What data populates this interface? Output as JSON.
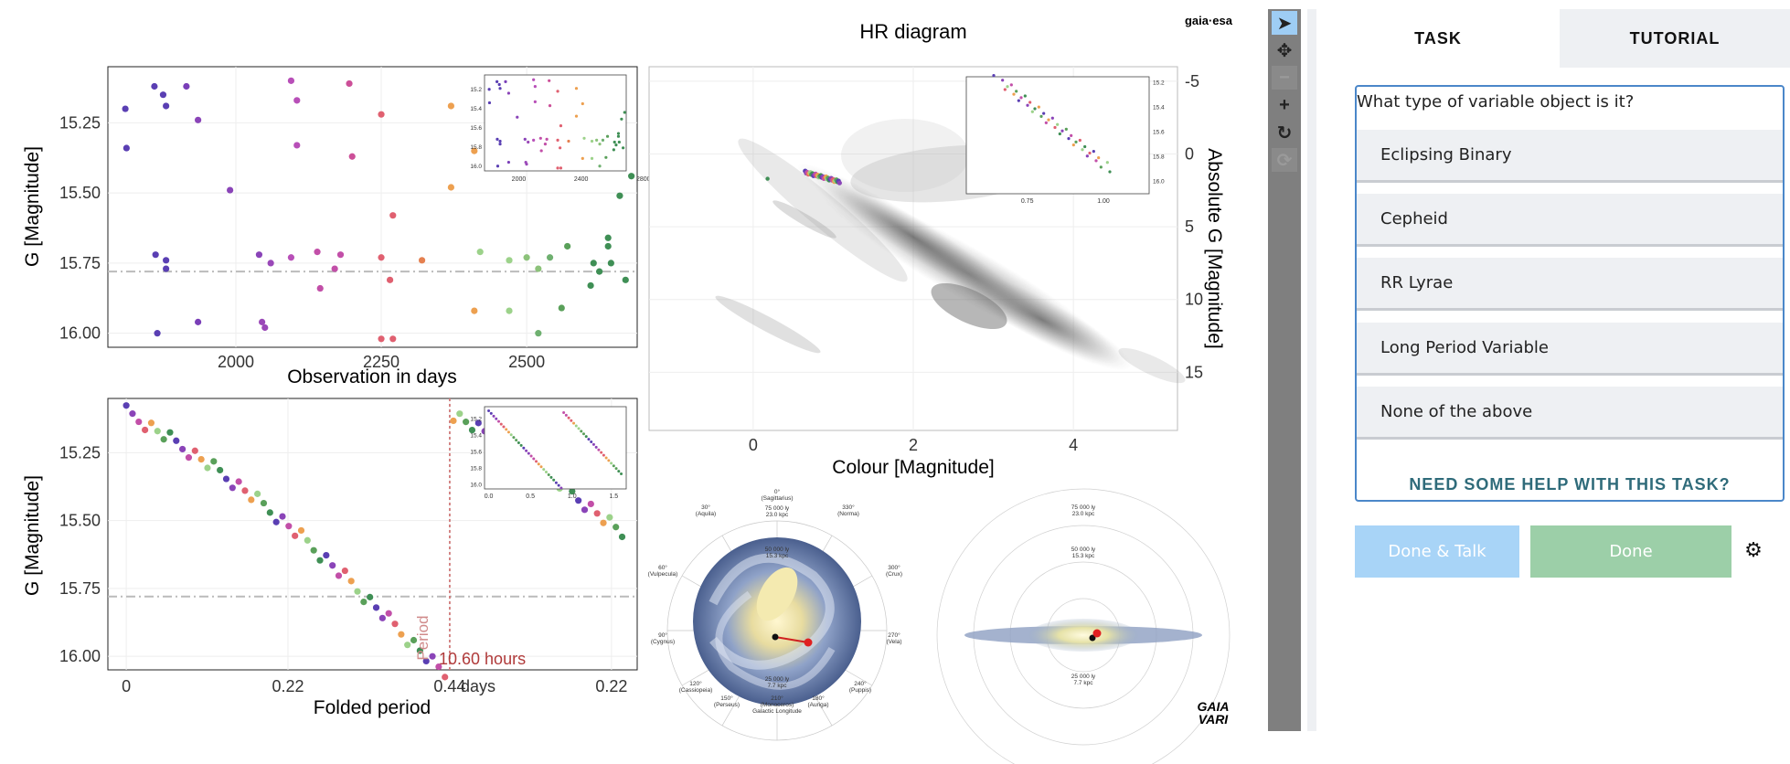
{
  "logos": {
    "gaia_esa": "gaia·esa",
    "gaia_vari_top": "GAIA",
    "gaia_vari_bottom": "VARI"
  },
  "hr": {
    "title": "HR diagram",
    "xlabel": "Colour [Magnitude]",
    "ylabel": "Absolute G [Magnitude]"
  },
  "lightcurve": {
    "ylabel": "G [Magnitude]",
    "xlabel": "Observation in days"
  },
  "folded": {
    "ylabel": "G [Magnitude]",
    "xlabel": "Folded period",
    "xunit": "days",
    "period_label": "Period",
    "period_value": "10.60 hours"
  },
  "galaxy": {
    "face_on_labels": [
      "0°",
      "(Sagittarius)",
      "75 000 ly",
      "23.0 kpc",
      "30°",
      "(Aquila)",
      "330°",
      "(Norma)",
      "60°",
      "(Vulpecula)",
      "300°",
      "(Crux)",
      "90°",
      "(Cygnus)",
      "270°",
      "(Vela)",
      "120°",
      "(Cassiopeia)",
      "240°",
      "(Puppis)",
      "150°",
      "(Perseus)",
      "180°",
      "(Auriga)",
      "210°",
      "(Monoceros)",
      "Galactic Longitude",
      "50 000 ly",
      "15.3 kpc",
      "25 000 ly",
      "7.7 kpc"
    ],
    "edge_on_labels": [
      "75 000 ly",
      "23.0 kpc",
      "50 000 ly",
      "15.3 kpc",
      "25 000 ly",
      "7.7 kpc"
    ]
  },
  "toolbar": {
    "icons": [
      "pointer-icon",
      "move-icon",
      "zoom-out-icon",
      "zoom-in-icon",
      "rotate-icon",
      "reset-icon"
    ]
  },
  "panel": {
    "tabs": [
      "TASK",
      "TUTORIAL"
    ],
    "question": "What type of variable object is it?",
    "answers": [
      "Eclipsing Binary",
      "Cepheid",
      "RR Lyrae",
      "Long Period Variable",
      "None of the above"
    ],
    "help": "NEED SOME HELP WITH THIS TASK?",
    "done_talk": "Done & Talk",
    "done": "Done",
    "colors": {
      "accent": "#4b87c9",
      "done": "#9ccfa8",
      "done_talk": "#a8d4f7"
    }
  },
  "chart_data": [
    {
      "type": "scatter",
      "name": "lightcurve",
      "xlabel": "Observation in days",
      "ylabel": "G [Magnitude]",
      "xlim": [
        1780,
        2690
      ],
      "ylim": [
        16.05,
        15.05
      ],
      "xticks": [
        2000,
        2250,
        2500
      ],
      "yticks": [
        15.25,
        15.5,
        15.75,
        16.0
      ],
      "mean_line": 15.78,
      "points": [
        [
          1810,
          15.2,
          "#5a3fb3"
        ],
        [
          1812,
          15.34,
          "#5a3fb3"
        ],
        [
          1860,
          15.12,
          "#5a3fb3"
        ],
        [
          1875,
          15.15,
          "#5a3fb3"
        ],
        [
          1880,
          15.19,
          "#5a3fb3"
        ],
        [
          1862,
          15.72,
          "#5a3fb3"
        ],
        [
          1880,
          15.77,
          "#5a3fb3"
        ],
        [
          1880,
          15.74,
          "#5a3fb3"
        ],
        [
          1865,
          16.0,
          "#5a3fb3"
        ],
        [
          1915,
          15.12,
          "#7a3fb8"
        ],
        [
          1935,
          15.24,
          "#8a44b8"
        ],
        [
          1935,
          15.96,
          "#7a3fb8"
        ],
        [
          1990,
          15.49,
          "#8a44b8"
        ],
        [
          2040,
          15.72,
          "#8a44b8"
        ],
        [
          2045,
          15.96,
          "#9a48b8"
        ],
        [
          2050,
          15.98,
          "#9a48b8"
        ],
        [
          2060,
          15.75,
          "#9a48b8"
        ],
        [
          2095,
          15.1,
          "#b84fb8"
        ],
        [
          2105,
          15.17,
          "#b84fb8"
        ],
        [
          2105,
          15.33,
          "#b84fb8"
        ],
        [
          2095,
          15.73,
          "#b84fb8"
        ],
        [
          2140,
          15.71,
          "#c24fa8"
        ],
        [
          2145,
          15.84,
          "#c24fa8"
        ],
        [
          2170,
          15.77,
          "#c24fa8"
        ],
        [
          2180,
          15.72,
          "#c24fa8"
        ],
        [
          2195,
          15.11,
          "#cc4f98"
        ],
        [
          2200,
          15.37,
          "#cc4f98"
        ],
        [
          2250,
          15.22,
          "#e06070"
        ],
        [
          2250,
          15.73,
          "#e06070"
        ],
        [
          2250,
          16.02,
          "#e06070"
        ],
        [
          2270,
          16.02,
          "#e06070"
        ],
        [
          2265,
          15.81,
          "#e06070"
        ],
        [
          2270,
          15.58,
          "#e06070"
        ],
        [
          2320,
          15.74,
          "#e58050"
        ],
        [
          2370,
          15.19,
          "#eda050"
        ],
        [
          2370,
          15.48,
          "#eda050"
        ],
        [
          2410,
          15.35,
          "#eda050"
        ],
        [
          2410,
          15.92,
          "#eda050"
        ],
        [
          2420,
          15.71,
          "#9cd28a"
        ],
        [
          2470,
          15.74,
          "#9cd28a"
        ],
        [
          2470,
          15.92,
          "#9cd28a"
        ],
        [
          2500,
          15.73,
          "#8cc27a"
        ],
        [
          2520,
          15.77,
          "#8cc27a"
        ],
        [
          2520,
          16.0,
          "#6fb070"
        ],
        [
          2540,
          15.73,
          "#6fb070"
        ],
        [
          2560,
          15.91,
          "#5aa05a"
        ],
        [
          2570,
          15.69,
          "#5aa05a"
        ],
        [
          2610,
          15.83,
          "#3f8f55"
        ],
        [
          2615,
          15.75,
          "#3f8f55"
        ],
        [
          2625,
          15.78,
          "#3f8f55"
        ],
        [
          2640,
          15.69,
          "#3f8f55"
        ],
        [
          2645,
          15.75,
          "#3f8f55"
        ],
        [
          2640,
          15.66,
          "#3f8f55"
        ],
        [
          2660,
          15.51,
          "#3f8f55"
        ],
        [
          2670,
          15.81,
          "#3f8f55"
        ],
        [
          2680,
          15.44,
          "#3f8f55"
        ]
      ]
    },
    {
      "type": "scatter",
      "name": "folded",
      "xlabel": "Folded period",
      "ylabel": "G [Magnitude]",
      "xlim": [
        -0.025,
        0.695
      ],
      "ylim": [
        16.05,
        15.05
      ],
      "xticks": [
        [
          0,
          "0"
        ],
        [
          0.22,
          "0.22"
        ],
        [
          0.44,
          "0.44"
        ],
        [
          0.66,
          "0.22"
        ]
      ],
      "yticks": [
        15.25,
        15.5,
        15.75,
        16.0
      ],
      "mean_line": 15.78,
      "period_x": 0.44
    },
    {
      "type": "scatter",
      "name": "hr",
      "title": "HR diagram",
      "xlabel": "Colour [Magnitude]",
      "ylabel": "Absolute G [Magnitude]",
      "xlim": [
        -1.3,
        5.3
      ],
      "ylim": [
        -6,
        19
      ],
      "xticks": [
        0,
        2,
        4
      ],
      "yticks": [
        -5,
        0,
        5,
        10,
        15
      ],
      "target": {
        "x": 0.85,
        "y": 1.6
      }
    }
  ]
}
